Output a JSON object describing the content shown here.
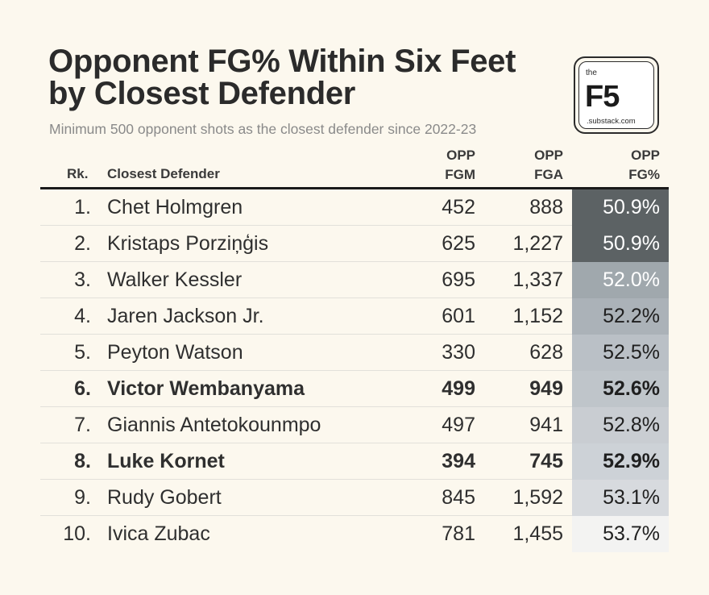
{
  "title_line1": "Opponent FG% Within Six Feet",
  "title_line2": "by Closest Defender",
  "subtitle": "Minimum 500 opponent shots as the closest defender since 2022-23",
  "logo": {
    "the": "the",
    "mark": "F5",
    "sub": ".substack.com"
  },
  "headers": {
    "rank": "Rk.",
    "name": "Closest Defender",
    "fgm_1": "OPP",
    "fgm_2": "FGM",
    "fga_1": "OPP",
    "fga_2": "FGA",
    "pct_1": "OPP",
    "pct_2": "FG%"
  },
  "colors": {
    "background": "#fcf8ee",
    "heat_dark": "#5c6264",
    "heat_light": "#f3f3f2"
  },
  "chart_data": {
    "type": "table",
    "title": "Opponent FG% Within Six Feet by Closest Defender",
    "subtitle": "Minimum 500 opponent shots as the closest defender since 2022-23",
    "columns": [
      "Rk.",
      "Closest Defender",
      "OPP FGM",
      "OPP FGA",
      "OPP FG%"
    ],
    "heat_range": [
      50.9,
      53.7
    ],
    "rows": [
      {
        "rank": "1.",
        "name": "Chet Holmgren",
        "fgm": "452",
        "fga": "888",
        "pct": "50.9%",
        "pct_value": 50.9,
        "bold": false
      },
      {
        "rank": "2.",
        "name": "Kristaps Porziņģis",
        "fgm": "625",
        "fga": "1,227",
        "pct": "50.9%",
        "pct_value": 50.9,
        "bold": false
      },
      {
        "rank": "3.",
        "name": "Walker Kessler",
        "fgm": "695",
        "fga": "1,337",
        "pct": "52.0%",
        "pct_value": 52.0,
        "bold": false
      },
      {
        "rank": "4.",
        "name": "Jaren Jackson Jr.",
        "fgm": "601",
        "fga": "1,152",
        "pct": "52.2%",
        "pct_value": 52.2,
        "bold": false
      },
      {
        "rank": "5.",
        "name": "Peyton Watson",
        "fgm": "330",
        "fga": "628",
        "pct": "52.5%",
        "pct_value": 52.5,
        "bold": false
      },
      {
        "rank": "6.",
        "name": "Victor Wembanyama",
        "fgm": "499",
        "fga": "949",
        "pct": "52.6%",
        "pct_value": 52.6,
        "bold": true
      },
      {
        "rank": "7.",
        "name": "Giannis Antetokounmpo",
        "fgm": "497",
        "fga": "941",
        "pct": "52.8%",
        "pct_value": 52.8,
        "bold": false
      },
      {
        "rank": "8.",
        "name": "Luke Kornet",
        "fgm": "394",
        "fga": "745",
        "pct": "52.9%",
        "pct_value": 52.9,
        "bold": true
      },
      {
        "rank": "9.",
        "name": "Rudy Gobert",
        "fgm": "845",
        "fga": "1,592",
        "pct": "53.1%",
        "pct_value": 53.1,
        "bold": false
      },
      {
        "rank": "10.",
        "name": "Ivica Zubac",
        "fgm": "781",
        "fga": "1,455",
        "pct": "53.7%",
        "pct_value": 53.7,
        "bold": false
      }
    ]
  }
}
